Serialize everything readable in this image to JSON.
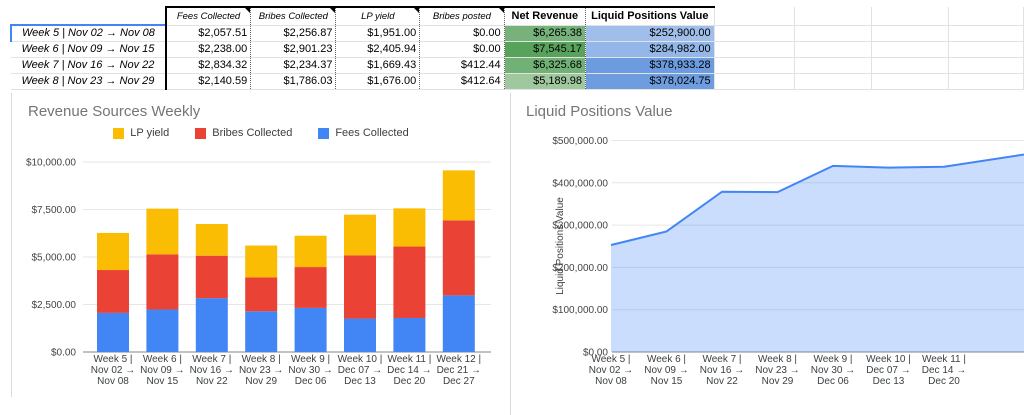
{
  "table": {
    "headers": [
      {
        "label": "",
        "style": "blank"
      },
      {
        "label": "Fees Collected",
        "style": "italic",
        "note": true
      },
      {
        "label": "Bribes Collected",
        "style": "italic",
        "note": true
      },
      {
        "label": "LP yield",
        "style": "italic",
        "note": true
      },
      {
        "label": "Bribes posted",
        "style": "italic",
        "note": true
      },
      {
        "label": "Net Revenue",
        "style": "bold",
        "note": false
      },
      {
        "label": "Liquid Positions Value",
        "style": "bold",
        "note": false
      }
    ],
    "rows": [
      {
        "label": "Week 5 | Nov 02 → Nov 08",
        "selected": true,
        "values": [
          "$2,057.51",
          "$2,256.87",
          "$1,951.00",
          "$0.00",
          "$6,265.38",
          "$252,900.00"
        ],
        "net_revenue_bg": "#76b27a",
        "lpv_bg": "#9fbfea"
      },
      {
        "label": "Week 6 | Nov 09 → Nov 15",
        "selected": false,
        "values": [
          "$2,238.00",
          "$2,901.23",
          "$2,405.94",
          "$0.00",
          "$7,545.17",
          "$284,982.00"
        ],
        "net_revenue_bg": "#58a35c",
        "lpv_bg": "#93b7e8"
      },
      {
        "label": "Week 7 | Nov 16 → Nov 22",
        "selected": false,
        "values": [
          "$2,834.32",
          "$2,234.37",
          "$1,669.43",
          "$412.44",
          "$6,325.68",
          "$378,933.28"
        ],
        "net_revenue_bg": "#72b175",
        "lpv_bg": "#6c9cdf"
      },
      {
        "label": "Week 8 | Nov 23 → Nov 29",
        "selected": false,
        "values": [
          "$2,140.59",
          "$1,786.03",
          "$1,676.00",
          "$412.64",
          "$5,189.98",
          "$378,024.75"
        ],
        "net_revenue_bg": "#9fc89f",
        "lpv_bg": "#6d9ddf"
      }
    ],
    "empty_column_count": 4
  },
  "chart_data": [
    {
      "type": "bar",
      "stacked": true,
      "title": "Revenue Sources Weekly",
      "legend_position": "top",
      "legend_order": [
        "LP yield",
        "Bribes Collected",
        "Fees Collected"
      ],
      "categories": [
        [
          "Week 5 |",
          "Nov 02 →",
          "Nov 08"
        ],
        [
          "Week 6 |",
          "Nov 09 →",
          "Nov 15"
        ],
        [
          "Week 7 |",
          "Nov 16 →",
          "Nov 22"
        ],
        [
          "Week 8 |",
          "Nov 23 →",
          "Nov 29"
        ],
        [
          "Week 9 |",
          "Nov 30 →",
          "Dec 06"
        ],
        [
          "Week 10 |",
          "Dec 07 →",
          "Dec 13"
        ],
        [
          "Week 11 |",
          "Dec 14 →",
          "Dec 20"
        ],
        [
          "Week 12 |",
          "Dec 21 →",
          "Dec 27"
        ]
      ],
      "series": [
        {
          "name": "Fees Collected",
          "color": "#4285f4",
          "values": [
            2057.51,
            2238.0,
            2834.32,
            2140.59,
            2320,
            1760,
            1790,
            2980
          ]
        },
        {
          "name": "Bribes Collected",
          "color": "#ea4335",
          "values": [
            2256.87,
            2901.23,
            2234.37,
            1786.03,
            2150,
            3330,
            3760,
            3950
          ]
        },
        {
          "name": "LP yield",
          "color": "#fbbc04",
          "values": [
            1951.0,
            2405.94,
            1669.43,
            1676.0,
            1650,
            2140,
            2010,
            2630
          ]
        }
      ],
      "ylim": [
        0,
        10000
      ],
      "grid": true,
      "y_ticks": [
        {
          "v": 0,
          "label": "$0.00"
        },
        {
          "v": 2500,
          "label": "$2,500.00"
        },
        {
          "v": 5000,
          "label": "$5,000.00"
        },
        {
          "v": 7500,
          "label": "$7,500.00"
        },
        {
          "v": 10000,
          "label": "$10,000.00"
        }
      ]
    },
    {
      "type": "area",
      "title": "Liquid Positions Value",
      "ylabel": "Liquid Positions Value",
      "categories": [
        [
          "Week 5 |",
          "Nov 02 →",
          "Nov 08"
        ],
        [
          "Week 6 |",
          "Nov 09 →",
          "Nov 15"
        ],
        [
          "Week 7 |",
          "Nov 16 →",
          "Nov 22"
        ],
        [
          "Week 8 |",
          "Nov 23 →",
          "Nov 29"
        ],
        [
          "Week 9 |",
          "Nov 30 →",
          "Dec 06"
        ],
        [
          "Week 10 |",
          "Dec 07 →",
          "Dec 13"
        ],
        [
          "Week 11 |",
          "Dec 14 →",
          "Dec 20"
        ]
      ],
      "values": [
        252900,
        284982,
        378933.28,
        378024.75,
        440000,
        436000,
        438000
      ],
      "clipped_extension_value": 478000,
      "line_color": "#4285f4",
      "fill_color": "rgba(66,133,244,0.28)",
      "ylim": [
        0,
        500000
      ],
      "grid": true,
      "y_ticks": [
        {
          "v": 0,
          "label": "$0.00"
        },
        {
          "v": 100000,
          "label": "$100,000.00"
        },
        {
          "v": 200000,
          "label": "$200,000.00"
        },
        {
          "v": 300000,
          "label": "$300,000.00"
        },
        {
          "v": 400000,
          "label": "$400,000.00"
        },
        {
          "v": 500000,
          "label": "$500,000.00"
        }
      ]
    }
  ]
}
